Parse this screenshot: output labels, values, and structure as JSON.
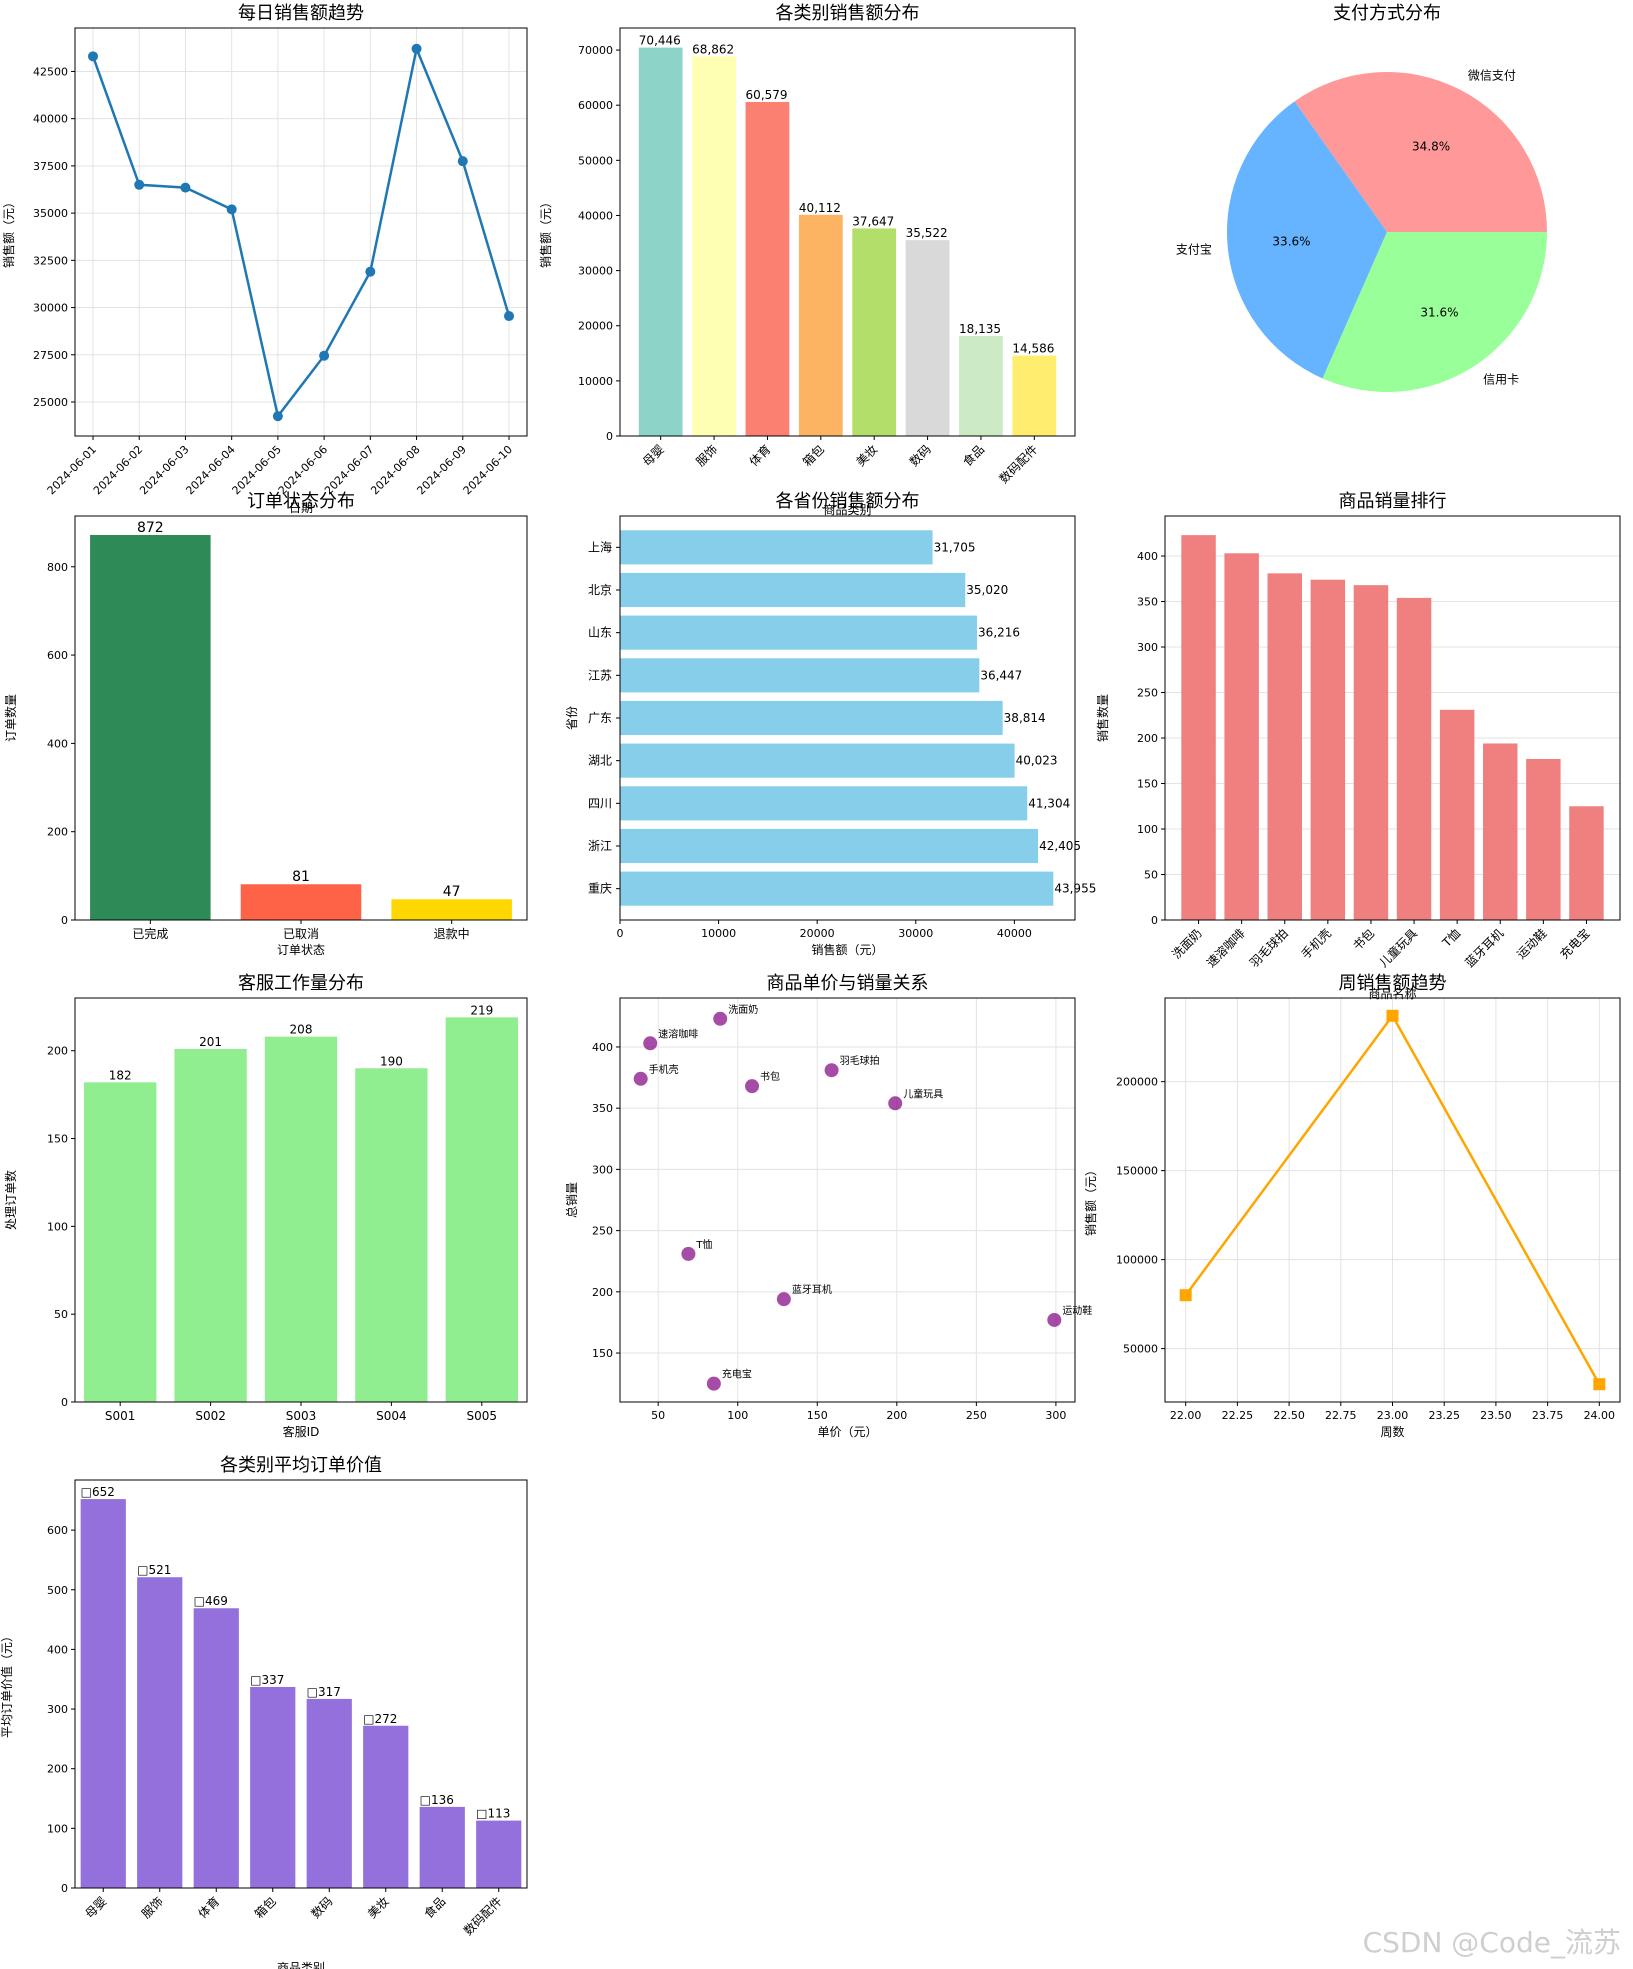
{
  "watermark": "CSDN @Code_流苏",
  "chart_data": [
    {
      "id": "daily",
      "type": "line",
      "title": "每日销售额趋势",
      "xlabel": "日期",
      "ylabel": "销售额（元）",
      "x": [
        "2024-06-01",
        "2024-06-02",
        "2024-06-03",
        "2024-06-04",
        "2024-06-05",
        "2024-06-06",
        "2024-06-07",
        "2024-06-08",
        "2024-06-09",
        "2024-06-10"
      ],
      "values": [
        43300,
        36500,
        36350,
        35200,
        24250,
        27450,
        31900,
        43700,
        37750,
        29550
      ],
      "ylim": [
        23200,
        44800
      ],
      "yticks": [
        25000,
        27500,
        30000,
        32500,
        35000,
        37500,
        40000,
        42500
      ],
      "color": "#1f77b4",
      "grid": true
    },
    {
      "id": "category",
      "type": "bar",
      "title": "各类别销售额分布",
      "xlabel": "商品类别",
      "ylabel": "销售额（元）",
      "categories": [
        "母婴",
        "服饰",
        "体育",
        "箱包",
        "美妆",
        "数码",
        "食品",
        "数码配件"
      ],
      "values": [
        70446,
        68862,
        60579,
        40112,
        37647,
        35522,
        18135,
        14586
      ],
      "labels": [
        "70,446",
        "68,862",
        "60,579",
        "40,112",
        "37,647",
        "35,522",
        "18,135",
        "14,586"
      ],
      "colors": [
        "#8dd3c7",
        "#ffffb3",
        "#fb8072",
        "#fdb462",
        "#b3de69",
        "#d9d9d9",
        "#ccebc5",
        "#ffed6f"
      ],
      "ylim": [
        0,
        74000
      ],
      "yticks": [
        0,
        10000,
        20000,
        30000,
        40000,
        50000,
        60000,
        70000
      ]
    },
    {
      "id": "payment",
      "type": "pie",
      "title": "支付方式分布",
      "categories": [
        "微信支付",
        "支付宝",
        "信用卡"
      ],
      "values": [
        34.8,
        33.6,
        31.6
      ],
      "pct_labels": [
        "34.8%",
        "33.6%",
        "31.6%"
      ],
      "colors": [
        "#ff9999",
        "#66b3ff",
        "#99ff99"
      ]
    },
    {
      "id": "status",
      "type": "bar",
      "title": "订单状态分布",
      "xlabel": "订单状态",
      "ylabel": "订单数量",
      "categories": [
        "已完成",
        "已取消",
        "退款中"
      ],
      "values": [
        872,
        81,
        47
      ],
      "labels": [
        "872",
        "81",
        "47"
      ],
      "colors": [
        "#2e8b57",
        "#ff6347",
        "#ffd700"
      ],
      "ylim": [
        0,
        915
      ],
      "yticks": [
        0,
        200,
        400,
        600,
        800
      ]
    },
    {
      "id": "province",
      "type": "bar",
      "orientation": "horizontal",
      "title": "各省份销售额分布",
      "xlabel": "销售额（元）",
      "ylabel": "省份",
      "categories": [
        "上海",
        "北京",
        "山东",
        "江苏",
        "广东",
        "湖北",
        "四川",
        "浙江",
        "重庆"
      ],
      "values": [
        31705,
        35020,
        36216,
        36447,
        38814,
        40023,
        41304,
        42405,
        43955
      ],
      "labels": [
        "31,705",
        "35,020",
        "36,216",
        "36,447",
        "38,814",
        "40,023",
        "41,304",
        "42,405",
        "43,955"
      ],
      "color": "#87ceeb",
      "xlim": [
        0,
        46150
      ],
      "xticks": [
        0,
        10000,
        20000,
        30000,
        40000
      ]
    },
    {
      "id": "ranking",
      "type": "bar",
      "title": "商品销量排行",
      "xlabel": "商品名称",
      "ylabel": "销售数量",
      "categories": [
        "洗面奶",
        "速溶咖啡",
        "羽毛球拍",
        "手机壳",
        "书包",
        "儿童玩具",
        "T恤",
        "蓝牙耳机",
        "运动鞋",
        "充电宝"
      ],
      "values": [
        423,
        403,
        381,
        374,
        368,
        354,
        231,
        194,
        177,
        125
      ],
      "color": "#f08080",
      "ylim": [
        0,
        444
      ],
      "yticks": [
        0,
        50,
        100,
        150,
        200,
        250,
        300,
        350,
        400
      ]
    },
    {
      "id": "service",
      "type": "bar",
      "title": "客服工作量分布",
      "xlabel": "客服ID",
      "ylabel": "处理订单数",
      "categories": [
        "S001",
        "S002",
        "S003",
        "S004",
        "S005"
      ],
      "values": [
        182,
        201,
        208,
        190,
        219
      ],
      "labels": [
        "182",
        "201",
        "208",
        "190",
        "219"
      ],
      "color": "#90ee90",
      "ylim": [
        0,
        230
      ],
      "yticks": [
        0,
        50,
        100,
        150,
        200
      ]
    },
    {
      "id": "scatter",
      "type": "scatter",
      "title": "商品单价与销量关系",
      "xlabel": "单价（元）",
      "ylabel": "总销量",
      "points": [
        {
          "label": "洗面奶",
          "x": 89,
          "y": 423
        },
        {
          "label": "速溶咖啡",
          "x": 45,
          "y": 403
        },
        {
          "label": "手机壳",
          "x": 39,
          "y": 374
        },
        {
          "label": "书包",
          "x": 109,
          "y": 368
        },
        {
          "label": "羽毛球拍",
          "x": 159,
          "y": 381
        },
        {
          "label": "儿童玩具",
          "x": 199,
          "y": 354
        },
        {
          "label": "T恤",
          "x": 69,
          "y": 231
        },
        {
          "label": "蓝牙耳机",
          "x": 129,
          "y": 194
        },
        {
          "label": "运动鞋",
          "x": 299,
          "y": 177
        },
        {
          "label": "充电宝",
          "x": 85,
          "y": 125
        }
      ],
      "color": "#800080",
      "xlim": [
        26,
        312
      ],
      "ylim": [
        110,
        440
      ],
      "xticks": [
        50,
        100,
        150,
        200,
        250,
        300
      ],
      "yticks": [
        150,
        200,
        250,
        300,
        350,
        400
      ]
    },
    {
      "id": "weekly",
      "type": "line",
      "title": "周销售额趋势",
      "xlabel": "周数",
      "ylabel": "销售额（元）",
      "x": [
        22,
        23,
        24
      ],
      "values": [
        80000,
        237000,
        30000
      ],
      "xlim": [
        21.9,
        24.1
      ],
      "xticks": [
        "22.00",
        "22.25",
        "22.50",
        "22.75",
        "23.00",
        "23.25",
        "23.50",
        "23.75",
        "24.00"
      ],
      "ylim": [
        20000,
        247000
      ],
      "yticks": [
        50000,
        100000,
        150000,
        200000
      ],
      "color": "#ffa500",
      "marker": "square"
    },
    {
      "id": "avgorder",
      "type": "bar",
      "title": "各类别平均订单价值",
      "xlabel": "商品类别",
      "ylabel": "平均订单价值（元）",
      "categories": [
        "母婴",
        "服饰",
        "体育",
        "箱包",
        "数码",
        "美妆",
        "食品",
        "数码配件"
      ],
      "values": [
        652,
        521,
        469,
        337,
        317,
        272,
        136,
        113
      ],
      "labels": [
        "□652",
        "□521",
        "□469",
        "□337",
        "□317",
        "□272",
        "□136",
        "□113"
      ],
      "color": "#9370db",
      "ylim": [
        0,
        684
      ],
      "yticks": [
        0,
        100,
        200,
        300,
        400,
        500,
        600
      ]
    }
  ]
}
